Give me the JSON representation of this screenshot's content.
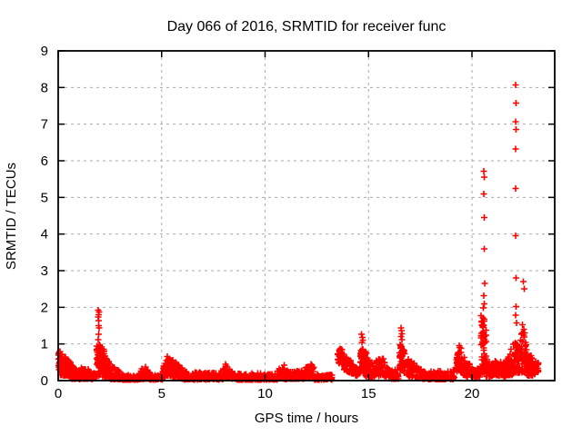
{
  "chart_data": {
    "type": "scatter",
    "title": "Day 066 of 2016, SRMTID for receiver func",
    "xlabel": "GPS time / hours",
    "ylabel": "SRMTID / TECUs",
    "xlim": [
      0,
      24
    ],
    "ylim": [
      0,
      9
    ],
    "xticks": [
      0,
      5,
      10,
      15,
      20
    ],
    "yticks": [
      0,
      1,
      2,
      3,
      4,
      5,
      6,
      7,
      8,
      9
    ],
    "grid": true,
    "grid_style": "dashed",
    "grid_color": "#aaaaaa",
    "frame_color": "#000000",
    "marker": "plus",
    "marker_color": "#ff0000",
    "marker_size_px": 7,
    "seed": 2016066,
    "cluster_fields": [
      "x_start",
      "x_end",
      "n_points",
      "y_low_start",
      "y_high_start",
      "y_low_end",
      "y_high_end",
      "bottom_bias"
    ],
    "dense_clusters": [
      [
        0.02,
        0.1,
        30,
        0.25,
        0.85,
        0.25,
        0.8,
        1.2
      ],
      [
        0.1,
        0.6,
        120,
        0.15,
        0.8,
        0.12,
        0.5,
        1.6
      ],
      [
        0.6,
        1.1,
        85,
        0.05,
        0.45,
        0.04,
        0.22,
        1.6
      ],
      [
        1.1,
        1.4,
        45,
        0.05,
        0.38,
        0.05,
        0.3,
        1.5
      ],
      [
        1.4,
        1.6,
        30,
        0.05,
        0.35,
        0.04,
        0.22,
        1.5
      ],
      [
        1.6,
        1.86,
        35,
        0.04,
        0.2,
        0.06,
        0.25,
        1.5
      ],
      [
        1.86,
        2.08,
        60,
        0.12,
        1.05,
        0.15,
        0.95,
        1.1
      ],
      [
        2.08,
        2.45,
        75,
        0.1,
        0.9,
        0.08,
        0.52,
        1.4
      ],
      [
        2.45,
        3.1,
        85,
        0.04,
        0.5,
        0.03,
        0.2,
        1.7
      ],
      [
        3.1,
        3.9,
        75,
        0.02,
        0.17,
        0.02,
        0.13,
        1.5
      ],
      [
        3.9,
        4.2,
        35,
        0.03,
        0.2,
        0.05,
        0.45,
        1.4
      ],
      [
        4.2,
        4.5,
        30,
        0.04,
        0.45,
        0.02,
        0.15,
        1.4
      ],
      [
        4.5,
        5.05,
        45,
        0.02,
        0.14,
        0.03,
        0.2,
        1.5
      ],
      [
        5.05,
        5.4,
        55,
        0.08,
        0.48,
        0.15,
        0.63,
        1.3
      ],
      [
        5.4,
        6.0,
        75,
        0.12,
        0.63,
        0.05,
        0.35,
        1.5
      ],
      [
        6.0,
        7.95,
        160,
        0.03,
        0.26,
        0.03,
        0.2,
        1.8
      ],
      [
        7.95,
        8.15,
        28,
        0.05,
        0.32,
        0.08,
        0.43,
        1.3
      ],
      [
        8.15,
        8.45,
        30,
        0.07,
        0.43,
        0.04,
        0.2,
        1.4
      ],
      [
        8.45,
        10.6,
        170,
        0.02,
        0.18,
        0.03,
        0.22,
        1.8
      ],
      [
        10.6,
        11.15,
        55,
        0.04,
        0.38,
        0.04,
        0.26,
        1.5
      ],
      [
        11.15,
        11.9,
        65,
        0.04,
        0.24,
        0.05,
        0.3,
        1.6
      ],
      [
        11.9,
        12.35,
        50,
        0.06,
        0.36,
        0.1,
        0.5,
        1.3
      ],
      [
        12.35,
        12.9,
        30,
        0.02,
        0.2,
        0.02,
        0.12,
        1.5
      ],
      [
        12.9,
        13.25,
        22,
        0.03,
        0.22,
        0.03,
        0.15,
        1.4
      ],
      [
        13.5,
        13.8,
        42,
        0.5,
        0.95,
        0.42,
        0.8,
        1.3
      ],
      [
        13.8,
        14.35,
        62,
        0.3,
        0.75,
        0.15,
        0.42,
        1.4
      ],
      [
        14.35,
        14.6,
        26,
        0.12,
        0.36,
        0.15,
        0.4,
        1.4
      ],
      [
        14.6,
        14.85,
        48,
        0.2,
        1.0,
        0.2,
        0.85,
        1.2
      ],
      [
        14.85,
        15.35,
        58,
        0.1,
        0.8,
        0.08,
        0.32,
        1.5
      ],
      [
        15.35,
        15.65,
        32,
        0.1,
        0.55,
        0.15,
        0.66,
        1.3
      ],
      [
        15.65,
        16.0,
        32,
        0.15,
        0.66,
        0.06,
        0.3,
        1.4
      ],
      [
        16.0,
        16.45,
        42,
        0.04,
        0.28,
        0.05,
        0.3,
        1.6
      ],
      [
        16.5,
        16.75,
        48,
        0.25,
        1.05,
        0.2,
        0.9,
        1.2
      ],
      [
        16.75,
        17.6,
        75,
        0.1,
        0.68,
        0.05,
        0.3,
        1.5
      ],
      [
        17.6,
        19.15,
        130,
        0.03,
        0.25,
        0.04,
        0.28,
        1.8
      ],
      [
        19.2,
        19.5,
        45,
        0.2,
        0.62,
        0.3,
        0.95,
        1.2
      ],
      [
        19.5,
        20.1,
        60,
        0.15,
        0.75,
        0.08,
        0.3,
        1.5
      ],
      [
        20.1,
        20.4,
        32,
        0.06,
        0.3,
        0.1,
        0.35,
        1.5
      ],
      [
        20.42,
        20.68,
        65,
        0.25,
        2.0,
        0.2,
        1.6,
        1.4
      ],
      [
        20.68,
        21.1,
        58,
        0.1,
        0.52,
        0.15,
        0.5,
        1.6
      ],
      [
        21.1,
        21.55,
        52,
        0.15,
        0.55,
        0.12,
        0.5,
        1.6
      ],
      [
        21.55,
        21.98,
        48,
        0.1,
        0.5,
        0.15,
        0.85,
        1.5
      ],
      [
        21.98,
        22.35,
        62,
        0.25,
        1.1,
        0.2,
        0.9,
        1.3
      ],
      [
        22.35,
        22.65,
        48,
        0.2,
        1.5,
        0.25,
        1.0,
        1.5
      ],
      [
        22.65,
        23.05,
        58,
        0.1,
        0.72,
        0.15,
        0.65,
        1.5
      ],
      [
        23.05,
        23.22,
        16,
        0.2,
        0.6,
        0.25,
        0.5,
        1.3
      ]
    ],
    "outlier_points": [
      [
        1.93,
        1.92
      ],
      [
        1.97,
        1.87
      ],
      [
        1.95,
        1.8
      ],
      [
        1.94,
        1.73
      ],
      [
        1.96,
        1.64
      ],
      [
        1.95,
        1.5
      ],
      [
        1.98,
        1.44
      ],
      [
        1.96,
        1.27
      ],
      [
        1.94,
        1.12
      ],
      [
        2.2,
        0.86
      ],
      [
        2.22,
        0.8
      ],
      [
        5.28,
        0.66
      ],
      [
        8.08,
        0.45
      ],
      [
        10.92,
        0.42
      ],
      [
        14.66,
        1.26
      ],
      [
        14.7,
        1.18
      ],
      [
        14.72,
        1.1
      ],
      [
        14.68,
        1.04
      ],
      [
        16.57,
        1.44
      ],
      [
        16.6,
        1.36
      ],
      [
        16.62,
        1.28
      ],
      [
        16.58,
        1.2
      ],
      [
        16.61,
        1.12
      ],
      [
        19.38,
        0.95
      ],
      [
        19.41,
        0.9
      ],
      [
        20.57,
        5.72
      ],
      [
        20.6,
        5.55
      ],
      [
        20.58,
        5.1
      ],
      [
        20.6,
        4.45
      ],
      [
        20.59,
        3.6
      ],
      [
        20.61,
        2.65
      ],
      [
        20.58,
        2.32
      ],
      [
        20.6,
        2.1
      ],
      [
        20.56,
        1.98
      ],
      [
        21.88,
        0.86
      ],
      [
        22.12,
        8.07
      ],
      [
        22.13,
        7.58
      ],
      [
        22.1,
        7.07
      ],
      [
        22.13,
        6.85
      ],
      [
        22.11,
        6.32
      ],
      [
        22.12,
        5.25
      ],
      [
        22.11,
        3.96
      ],
      [
        22.13,
        2.8
      ],
      [
        22.14,
        2.02
      ],
      [
        22.12,
        1.78
      ],
      [
        22.15,
        1.58
      ],
      [
        22.48,
        2.7
      ],
      [
        22.52,
        2.5
      ],
      [
        22.44,
        1.52
      ],
      [
        22.5,
        1.4
      ],
      [
        22.55,
        1.3
      ],
      [
        22.4,
        1.26
      ]
    ]
  }
}
